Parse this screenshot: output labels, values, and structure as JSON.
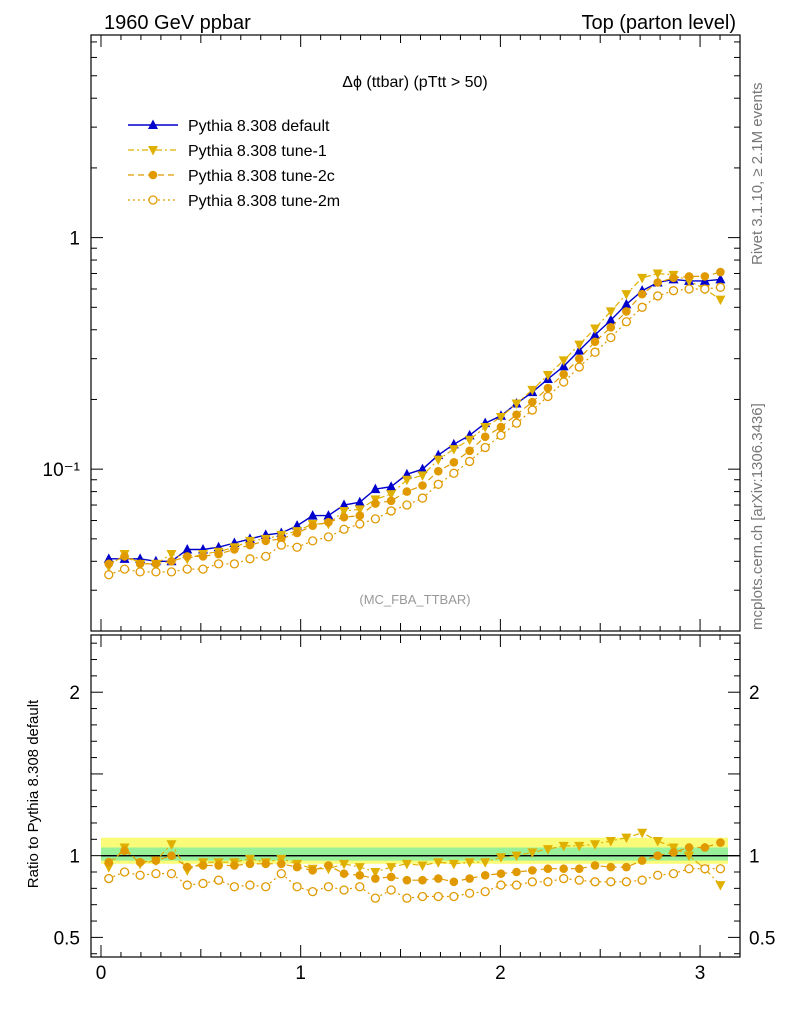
{
  "header": {
    "left_title": "1960 GeV ppbar",
    "right_title": "Top (parton level)"
  },
  "side_text": {
    "rivet": "Rivet 3.1.10, ≥ 2.1M events",
    "mcplots": "mcplots.cern.ch [arXiv:1306.3436]"
  },
  "chart_data": [
    {
      "type": "line",
      "title": "Δϕ (ttbar) (pTtt > 50)",
      "watermark": "(MC_FBA_TTBAR)",
      "yscale": "log",
      "xlim": [
        -0.05,
        3.2
      ],
      "ylim": [
        0.02,
        7.5
      ],
      "y_ticks": [
        {
          "value": 1,
          "label": "1"
        },
        {
          "value": 0.1,
          "label": "10⁻¹"
        }
      ],
      "legend": "top-left",
      "x": [
        0.039,
        0.118,
        0.196,
        0.275,
        0.353,
        0.432,
        0.511,
        0.589,
        0.668,
        0.746,
        0.825,
        0.903,
        0.982,
        1.06,
        1.139,
        1.217,
        1.296,
        1.374,
        1.453,
        1.532,
        1.61,
        1.689,
        1.767,
        1.846,
        1.924,
        2.003,
        2.081,
        2.16,
        2.238,
        2.317,
        2.395,
        2.474,
        2.553,
        2.631,
        2.71,
        2.788,
        2.867,
        2.945,
        3.024,
        3.102
      ],
      "series": [
        {
          "name": "Pythia 8.308 default",
          "color": "#0000cc",
          "marker": "triangle-up",
          "line": "solid",
          "values": [
            0.041,
            0.041,
            0.041,
            0.04,
            0.04,
            0.045,
            0.045,
            0.046,
            0.048,
            0.05,
            0.052,
            0.053,
            0.057,
            0.063,
            0.063,
            0.07,
            0.072,
            0.082,
            0.084,
            0.095,
            0.1,
            0.115,
            0.128,
            0.14,
            0.158,
            0.17,
            0.192,
            0.215,
            0.245,
            0.278,
            0.325,
            0.38,
            0.44,
            0.515,
            0.59,
            0.64,
            0.66,
            0.65,
            0.65,
            0.66
          ]
        },
        {
          "name": "Pythia 8.308 tune-1",
          "color": "#e0b000",
          "marker": "triangle-down",
          "line": "dash-dot",
          "values": [
            0.038,
            0.043,
            0.039,
            0.039,
            0.043,
            0.041,
            0.043,
            0.044,
            0.046,
            0.049,
            0.05,
            0.052,
            0.054,
            0.058,
            0.058,
            0.066,
            0.067,
            0.074,
            0.078,
            0.09,
            0.094,
            0.11,
            0.122,
            0.134,
            0.152,
            0.168,
            0.192,
            0.22,
            0.255,
            0.295,
            0.345,
            0.405,
            0.48,
            0.57,
            0.67,
            0.7,
            0.69,
            0.65,
            0.6,
            0.54
          ]
        },
        {
          "name": "Pythia 8.308 tune-2c",
          "color": "#e09a00",
          "marker": "circle",
          "line": "dashed",
          "values": [
            0.039,
            0.042,
            0.039,
            0.039,
            0.04,
            0.042,
            0.042,
            0.043,
            0.045,
            0.047,
            0.049,
            0.05,
            0.053,
            0.057,
            0.059,
            0.062,
            0.063,
            0.071,
            0.073,
            0.08,
            0.085,
            0.098,
            0.107,
            0.12,
            0.138,
            0.152,
            0.172,
            0.195,
            0.224,
            0.257,
            0.3,
            0.355,
            0.41,
            0.48,
            0.57,
            0.64,
            0.67,
            0.68,
            0.68,
            0.71
          ]
        },
        {
          "name": "Pythia 8.308 tune-2m",
          "color": "#e09a00",
          "marker": "open-circle",
          "line": "dotted",
          "values": [
            0.035,
            0.037,
            0.036,
            0.036,
            0.036,
            0.037,
            0.037,
            0.039,
            0.039,
            0.041,
            0.042,
            0.047,
            0.046,
            0.049,
            0.051,
            0.055,
            0.058,
            0.061,
            0.066,
            0.07,
            0.075,
            0.086,
            0.096,
            0.108,
            0.124,
            0.14,
            0.158,
            0.18,
            0.206,
            0.238,
            0.276,
            0.32,
            0.37,
            0.433,
            0.5,
            0.56,
            0.59,
            0.6,
            0.6,
            0.61
          ]
        }
      ]
    },
    {
      "type": "line",
      "ylabel": "Ratio to Pythia 8.308 default",
      "xlim": [
        -0.05,
        3.2
      ],
      "ylim": [
        0.38,
        2.35
      ],
      "x_ticks": [
        "0",
        "1",
        "2",
        "3"
      ],
      "y_ticks": [
        {
          "value": 2,
          "label": "2"
        },
        {
          "value": 1,
          "label": "1"
        },
        {
          "value": 0.5,
          "label": "0.5"
        }
      ],
      "reference_line": 1.0,
      "x": [
        0.039,
        0.118,
        0.196,
        0.275,
        0.353,
        0.432,
        0.511,
        0.589,
        0.668,
        0.746,
        0.825,
        0.903,
        0.982,
        1.06,
        1.139,
        1.217,
        1.296,
        1.374,
        1.453,
        1.532,
        1.61,
        1.689,
        1.767,
        1.846,
        1.924,
        2.003,
        2.081,
        2.16,
        2.238,
        2.317,
        2.395,
        2.474,
        2.553,
        2.631,
        2.71,
        2.788,
        2.867,
        2.945,
        3.024,
        3.102
      ],
      "series": [
        {
          "name": "Pythia 8.308 tune-1",
          "color": "#e0b000",
          "marker": "triangle-down",
          "line": "dash-dot",
          "values": [
            0.93,
            1.05,
            0.95,
            0.97,
            1.07,
            0.91,
            0.96,
            0.96,
            0.96,
            0.98,
            0.96,
            0.98,
            0.95,
            0.92,
            0.92,
            0.95,
            0.93,
            0.9,
            0.93,
            0.95,
            0.94,
            0.96,
            0.95,
            0.96,
            0.96,
            0.99,
            1.0,
            1.02,
            1.04,
            1.06,
            1.06,
            1.07,
            1.09,
            1.11,
            1.14,
            1.09,
            1.05,
            1.0,
            0.92,
            0.82
          ]
        },
        {
          "name": "Pythia 8.308 tune-2c",
          "color": "#e09a00",
          "marker": "circle",
          "line": "dashed",
          "values": [
            0.96,
            1.03,
            0.96,
            0.97,
            1.0,
            0.93,
            0.94,
            0.94,
            0.94,
            0.95,
            0.95,
            0.95,
            0.93,
            0.91,
            0.94,
            0.89,
            0.88,
            0.86,
            0.87,
            0.85,
            0.85,
            0.86,
            0.84,
            0.86,
            0.88,
            0.89,
            0.9,
            0.91,
            0.92,
            0.92,
            0.92,
            0.94,
            0.93,
            0.93,
            0.97,
            1.0,
            1.02,
            1.05,
            1.05,
            1.08
          ]
        },
        {
          "name": "Pythia 8.308 tune-2m",
          "color": "#e09a00",
          "marker": "open-circle",
          "line": "dotted",
          "values": [
            0.86,
            0.9,
            0.88,
            0.89,
            0.89,
            0.82,
            0.83,
            0.85,
            0.81,
            0.82,
            0.81,
            0.89,
            0.81,
            0.78,
            0.81,
            0.79,
            0.81,
            0.74,
            0.79,
            0.74,
            0.75,
            0.75,
            0.75,
            0.77,
            0.78,
            0.82,
            0.82,
            0.84,
            0.84,
            0.86,
            0.85,
            0.84,
            0.84,
            0.84,
            0.85,
            0.88,
            0.89,
            0.92,
            0.92,
            0.92
          ]
        }
      ]
    }
  ]
}
